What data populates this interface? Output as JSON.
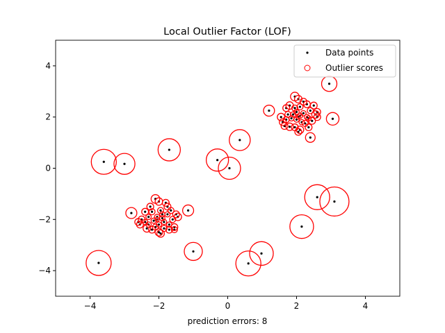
{
  "chart_data": {
    "type": "scatter",
    "title": "Local Outlier Factor (LOF)",
    "xlabel": "prediction errors: 8",
    "ylabel": "",
    "xlim": [
      -5,
      5
    ],
    "ylim": [
      -5,
      5
    ],
    "xticks": [
      "−4",
      "−2",
      "0",
      "2",
      "4"
    ],
    "yticks": [
      "−4",
      "−2",
      "0",
      "2",
      "4"
    ],
    "xtick_values": [
      -4,
      -2,
      0,
      2,
      4
    ],
    "ytick_values": [
      -4,
      -2,
      0,
      2,
      4
    ],
    "grid": false,
    "legend": {
      "placement": "top-right",
      "entries": [
        "Data points",
        "Outlier scores"
      ]
    },
    "colors": {
      "points": "#000000",
      "scores": "#ff0000"
    },
    "points": [
      [
        -3.6,
        0.25,
        0.67
      ],
      [
        -3.0,
        0.17,
        0.47
      ],
      [
        -1.7,
        0.72,
        0.53
      ],
      [
        0.35,
        1.1,
        0.47
      ],
      [
        -0.3,
        0.32,
        0.53
      ],
      [
        0.05,
        0.0,
        0.53
      ],
      [
        -3.75,
        -3.7,
        0.67
      ],
      [
        -1.0,
        -3.25,
        0.35
      ],
      [
        0.6,
        -3.72,
        0.67
      ],
      [
        0.98,
        -3.33,
        0.6
      ],
      [
        2.15,
        -2.28,
        0.6
      ],
      [
        2.6,
        -1.13,
        0.67
      ],
      [
        3.1,
        -1.3,
        0.91
      ],
      [
        2.95,
        3.3,
        0.25
      ],
      [
        3.05,
        1.93,
        0.17
      ],
      [
        1.2,
        2.25,
        0.13
      ],
      [
        2.4,
        1.2,
        0.1
      ],
      [
        -2.8,
        -1.75,
        0.13
      ],
      [
        -1.15,
        -1.65,
        0.13
      ],
      [
        1.95,
        2.8,
        0.08
      ],
      [
        2.05,
        2.7,
        0.06
      ],
      [
        2.2,
        2.6,
        0.05
      ],
      [
        2.3,
        2.5,
        0.05
      ],
      [
        2.5,
        2.45,
        0.05
      ],
      [
        1.8,
        2.45,
        0.06
      ],
      [
        1.7,
        2.35,
        0.05
      ],
      [
        1.55,
        2.0,
        0.06
      ],
      [
        1.6,
        1.8,
        0.05
      ],
      [
        1.65,
        1.65,
        0.05
      ],
      [
        1.8,
        1.62,
        0.06
      ],
      [
        1.95,
        1.6,
        0.05
      ],
      [
        2.1,
        1.5,
        0.06
      ],
      [
        2.05,
        1.42,
        0.05
      ],
      [
        2.35,
        1.6,
        0.05
      ],
      [
        2.45,
        1.85,
        0.05
      ],
      [
        2.55,
        2.1,
        0.06
      ],
      [
        2.6,
        2.0,
        0.05
      ],
      [
        2.6,
        2.2,
        0.05
      ],
      [
        1.9,
        2.1,
        0.03
      ],
      [
        2.0,
        2.2,
        0.03
      ],
      [
        2.1,
        2.05,
        0.03
      ],
      [
        2.2,
        2.15,
        0.03
      ],
      [
        1.85,
        1.95,
        0.03
      ],
      [
        2.3,
        2.0,
        0.03
      ],
      [
        2.0,
        1.9,
        0.03
      ],
      [
        2.15,
        1.8,
        0.03
      ],
      [
        1.75,
        2.1,
        0.04
      ],
      [
        2.25,
        1.75,
        0.04
      ],
      [
        2.4,
        2.25,
        0.04
      ],
      [
        1.95,
        2.35,
        0.04
      ],
      [
        2.1,
        2.4,
        0.04
      ],
      [
        1.7,
        1.9,
        0.04
      ],
      [
        2.35,
        1.95,
        0.03
      ],
      [
        2.05,
        2.0,
        0.02
      ],
      [
        -2.1,
        -1.2,
        0.08
      ],
      [
        -2.0,
        -1.3,
        0.06
      ],
      [
        -1.8,
        -1.35,
        0.05
      ],
      [
        -1.75,
        -1.5,
        0.05
      ],
      [
        -2.25,
        -1.5,
        0.05
      ],
      [
        -2.4,
        -1.7,
        0.05
      ],
      [
        -2.5,
        -2.0,
        0.05
      ],
      [
        -2.6,
        -2.1,
        0.05
      ],
      [
        -2.55,
        -2.2,
        0.05
      ],
      [
        -2.35,
        -2.35,
        0.06
      ],
      [
        -2.2,
        -2.4,
        0.05
      ],
      [
        -2.0,
        -2.5,
        0.06
      ],
      [
        -1.95,
        -2.55,
        0.06
      ],
      [
        -1.7,
        -2.4,
        0.05
      ],
      [
        -1.55,
        -2.3,
        0.05
      ],
      [
        -1.55,
        -2.4,
        0.04
      ],
      [
        -1.45,
        -1.9,
        0.06
      ],
      [
        -1.5,
        -1.8,
        0.05
      ],
      [
        -1.6,
        -2.0,
        0.04
      ],
      [
        -2.05,
        -1.9,
        0.03
      ],
      [
        -1.9,
        -1.95,
        0.03
      ],
      [
        -2.15,
        -2.05,
        0.03
      ],
      [
        -1.85,
        -2.1,
        0.03
      ],
      [
        -2.0,
        -2.2,
        0.03
      ],
      [
        -2.3,
        -1.9,
        0.03
      ],
      [
        -1.75,
        -1.8,
        0.03
      ],
      [
        -2.2,
        -1.7,
        0.04
      ],
      [
        -1.95,
        -1.65,
        0.04
      ],
      [
        -2.4,
        -2.1,
        0.03
      ],
      [
        -1.7,
        -2.2,
        0.03
      ],
      [
        -2.1,
        -2.3,
        0.04
      ],
      [
        -1.85,
        -2.35,
        0.04
      ],
      [
        -1.65,
        -1.65,
        0.04
      ],
      [
        -2.3,
        -2.2,
        0.03
      ],
      [
        -2.05,
        -2.0,
        0.02
      ],
      [
        -1.9,
        -1.8,
        0.03
      ]
    ]
  }
}
